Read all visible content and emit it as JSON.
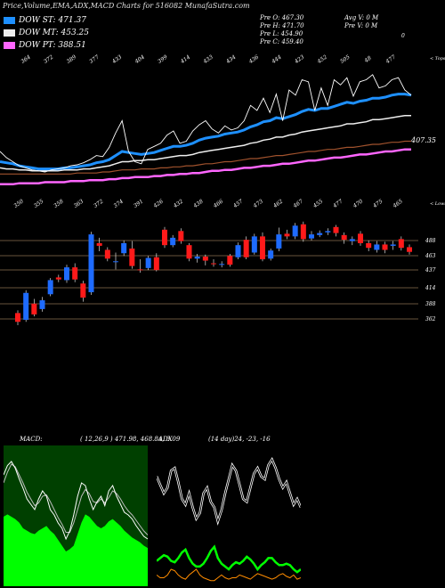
{
  "header": {
    "title": "Price,Volume,EMA,ADX,MACD Charts for 516082  MunafaSutra.com",
    "legend": [
      {
        "label": "DOW ST: 471.37",
        "color": "#1e90ff"
      },
      {
        "label": "DOW MT: 453.25",
        "color": "#eeeeee"
      },
      {
        "label": "DOW PT: 388.51",
        "color": "#ff66ff"
      }
    ],
    "prev": {
      "open": "Pre  O: 467.30",
      "high": "Pre  H: 471.70",
      "low": "Pre  L: 454.90",
      "close": "Pre  C: 459.40"
    },
    "avg_volume": "Avg V: 0  M",
    "prev_volume": "Pre  V: 0  M",
    "stray_mark": "0"
  },
  "chart_data": [
    {
      "type": "line",
      "name": "ema-panel",
      "top_tick_labels": [
        "364",
        "372",
        "389",
        "377",
        "433",
        "404",
        "399",
        "414",
        "433",
        "434",
        "436",
        "444",
        "423",
        "452",
        "505",
        "48",
        "477"
      ],
      "right_tag": "< Tops",
      "price_tag": "407.35",
      "colors": {
        "price": "#ffffff",
        "st": "#1e90ff",
        "mt": "#eeeeee",
        "lt_brown": "#a0522d",
        "pt": "#ff66ff"
      },
      "series": [
        {
          "values": [
            450,
            444,
            440,
            436,
            434,
            432,
            431,
            430,
            432,
            433,
            434,
            436,
            437,
            439,
            442,
            446,
            445,
            454,
            468,
            480,
            450,
            440,
            438,
            452,
            455,
            458,
            466,
            470,
            458,
            460,
            470,
            476,
            480,
            472,
            468,
            475,
            471,
            473,
            480,
            495,
            490,
            502,
            488,
            506,
            480,
            510,
            505,
            520,
            518,
            490,
            512,
            495,
            520,
            515,
            522,
            504,
            518,
            520,
            525,
            512,
            514,
            520,
            522,
            510,
            505
          ]
        },
        {
          "values": [
            440,
            439,
            438,
            436,
            435,
            434,
            433,
            433,
            433,
            433,
            434,
            434,
            435,
            436,
            437,
            439,
            440,
            442,
            446,
            450,
            449,
            448,
            447,
            448,
            449,
            451,
            453,
            455,
            455,
            456,
            458,
            461,
            463,
            464,
            465,
            467,
            468,
            469,
            471,
            474,
            476,
            479,
            480,
            483,
            482,
            484,
            486,
            489,
            491,
            490,
            492,
            492,
            494,
            496,
            498,
            497,
            499,
            500,
            502,
            502,
            503,
            505,
            506,
            506,
            505
          ]
        },
        {
          "values": [
            434,
            433,
            433,
            432,
            432,
            431,
            431,
            431,
            431,
            431,
            432,
            432,
            432,
            433,
            433,
            434,
            435,
            436,
            438,
            440,
            440,
            441,
            441,
            442,
            442,
            443,
            444,
            445,
            446,
            446,
            447,
            449,
            450,
            451,
            452,
            453,
            454,
            455,
            456,
            458,
            459,
            461,
            462,
            464,
            464,
            466,
            467,
            469,
            470,
            471,
            472,
            473,
            474,
            475,
            477,
            477,
            478,
            479,
            481,
            481,
            482,
            483,
            484,
            485,
            485
          ]
        },
        {
          "values": [
            428,
            428,
            428,
            428,
            428,
            428,
            428,
            428,
            428,
            428,
            428,
            428,
            429,
            429,
            429,
            429,
            430,
            430,
            431,
            432,
            432,
            432,
            433,
            433,
            433,
            434,
            434,
            435,
            435,
            436,
            436,
            437,
            438,
            438,
            439,
            440,
            440,
            441,
            442,
            443,
            443,
            444,
            445,
            446,
            446,
            447,
            448,
            449,
            450,
            450,
            451,
            452,
            452,
            453,
            454,
            454,
            455,
            456,
            457,
            457,
            458,
            459,
            459,
            460,
            460
          ]
        },
        {
          "values": [
            418,
            418,
            418,
            419,
            419,
            419,
            419,
            420,
            420,
            420,
            420,
            421,
            421,
            421,
            422,
            422,
            422,
            423,
            423,
            424,
            424,
            425,
            425,
            425,
            426,
            426,
            427,
            427,
            428,
            428,
            429,
            429,
            430,
            431,
            431,
            432,
            432,
            433,
            434,
            434,
            435,
            436,
            436,
            437,
            438,
            438,
            439,
            440,
            441,
            441,
            442,
            443,
            444,
            444,
            445,
            446,
            447,
            447,
            448,
            449,
            450,
            450,
            451,
            452,
            452
          ]
        }
      ]
    },
    {
      "type": "candlestick",
      "name": "price-panel",
      "bottom_tick_labels": [
        "350",
        "355",
        "358",
        "363",
        "372",
        "374",
        "391",
        "426",
        "432",
        "438",
        "466",
        "457",
        "473",
        "462",
        "467",
        "455",
        "477",
        "470",
        "475",
        "465"
      ],
      "right_tag": "< Lows",
      "y_axis_labels": [
        "488",
        "463",
        "437",
        "414",
        "388",
        "362"
      ],
      "ylim": [
        350,
        505
      ],
      "candles": [
        {
          "o": 368,
          "c": 355,
          "h": 372,
          "l": 350
        },
        {
          "o": 358,
          "c": 398,
          "h": 402,
          "l": 355
        },
        {
          "o": 382,
          "c": 366,
          "h": 389,
          "l": 363
        },
        {
          "o": 374,
          "c": 387,
          "h": 392,
          "l": 370
        },
        {
          "o": 396,
          "c": 417,
          "h": 420,
          "l": 393
        },
        {
          "o": 421,
          "c": 418,
          "h": 425,
          "l": 414
        },
        {
          "o": 417,
          "c": 436,
          "h": 440,
          "l": 413
        },
        {
          "o": 436,
          "c": 418,
          "h": 442,
          "l": 414
        },
        {
          "o": 412,
          "c": 391,
          "h": 416,
          "l": 385
        },
        {
          "o": 399,
          "c": 485,
          "h": 489,
          "l": 395
        },
        {
          "o": 472,
          "c": 468,
          "h": 480,
          "l": 460
        },
        {
          "o": 462,
          "c": 449,
          "h": 466,
          "l": 445
        },
        {
          "o": 445,
          "c": 445,
          "h": 458,
          "l": 433
        },
        {
          "o": 457,
          "c": 472,
          "h": 476,
          "l": 453
        },
        {
          "o": 464,
          "c": 438,
          "h": 475,
          "l": 434
        },
        {
          "o": 433,
          "c": 432,
          "h": 448,
          "l": 428
        },
        {
          "o": 435,
          "c": 450,
          "h": 453,
          "l": 432
        },
        {
          "o": 451,
          "c": 432,
          "h": 457,
          "l": 430
        },
        {
          "o": 492,
          "c": 469,
          "h": 496,
          "l": 465
        },
        {
          "o": 469,
          "c": 480,
          "h": 484,
          "l": 466
        },
        {
          "o": 490,
          "c": 475,
          "h": 494,
          "l": 471
        },
        {
          "o": 469,
          "c": 449,
          "h": 472,
          "l": 445
        },
        {
          "o": 449,
          "c": 452,
          "h": 456,
          "l": 443
        },
        {
          "o": 452,
          "c": 446,
          "h": 455,
          "l": 439
        },
        {
          "o": 442,
          "c": 441,
          "h": 448,
          "l": 437
        },
        {
          "o": 440,
          "c": 441,
          "h": 445,
          "l": 436
        },
        {
          "o": 453,
          "c": 440,
          "h": 456,
          "l": 437
        },
        {
          "o": 451,
          "c": 469,
          "h": 473,
          "l": 448
        },
        {
          "o": 477,
          "c": 451,
          "h": 482,
          "l": 448
        },
        {
          "o": 458,
          "c": 482,
          "h": 486,
          "l": 455
        },
        {
          "o": 482,
          "c": 448,
          "h": 488,
          "l": 445
        },
        {
          "o": 449,
          "c": 461,
          "h": 464,
          "l": 446
        },
        {
          "o": 464,
          "c": 485,
          "h": 495,
          "l": 460
        },
        {
          "o": 486,
          "c": 482,
          "h": 492,
          "l": 478
        },
        {
          "o": 482,
          "c": 498,
          "h": 502,
          "l": 478
        },
        {
          "o": 500,
          "c": 478,
          "h": 504,
          "l": 474
        },
        {
          "o": 479,
          "c": 485,
          "h": 490,
          "l": 476
        },
        {
          "o": 484,
          "c": 487,
          "h": 491,
          "l": 481
        },
        {
          "o": 488,
          "c": 490,
          "h": 494,
          "l": 484
        },
        {
          "o": 496,
          "c": 487,
          "h": 499,
          "l": 482
        },
        {
          "o": 484,
          "c": 477,
          "h": 488,
          "l": 471
        },
        {
          "o": 475,
          "c": 478,
          "h": 482,
          "l": 469
        },
        {
          "o": 486,
          "c": 472,
          "h": 490,
          "l": 468
        },
        {
          "o": 472,
          "c": 465,
          "h": 476,
          "l": 460
        },
        {
          "o": 462,
          "c": 470,
          "h": 475,
          "l": 458
        },
        {
          "o": 470,
          "c": 462,
          "h": 474,
          "l": 457
        },
        {
          "o": 468,
          "c": 470,
          "h": 475,
          "l": 462
        },
        {
          "o": 478,
          "c": 465,
          "h": 482,
          "l": 461
        },
        {
          "o": 466,
          "c": 459,
          "h": 470,
          "l": 455
        }
      ]
    },
    {
      "type": "area",
      "name": "macd-panel",
      "label": "MACD:",
      "params": "( 12,26,9 ) 471.98,  468.84,  3.09",
      "colors": {
        "hist": "#00ff00",
        "macd": "#ffffff",
        "signal": "#bbbbbb",
        "bg": "#004000"
      },
      "series": [
        {
          "values": [
            0.6,
            0.62,
            0.6,
            0.58,
            0.55,
            0.5,
            0.48,
            0.46,
            0.45,
            0.48,
            0.5,
            0.52,
            0.48,
            0.45,
            0.4,
            0.35,
            0.3,
            0.32,
            0.35,
            0.45,
            0.55,
            0.62,
            0.6,
            0.56,
            0.52,
            0.5,
            0.52,
            0.56,
            0.58,
            0.55,
            0.52,
            0.48,
            0.45,
            0.42,
            0.4,
            0.38,
            0.35,
            0.33
          ]
        },
        {
          "values": [
            0.78,
            0.85,
            0.88,
            0.83,
            0.75,
            0.68,
            0.6,
            0.56,
            0.52,
            0.6,
            0.66,
            0.62,
            0.52,
            0.48,
            0.42,
            0.38,
            0.3,
            0.36,
            0.48,
            0.62,
            0.72,
            0.7,
            0.6,
            0.52,
            0.58,
            0.62,
            0.55,
            0.66,
            0.7,
            0.62,
            0.56,
            0.5,
            0.48,
            0.45,
            0.4,
            0.36,
            0.32,
            0.3
          ]
        },
        {
          "values": [
            0.72,
            0.8,
            0.86,
            0.84,
            0.78,
            0.72,
            0.65,
            0.6,
            0.55,
            0.57,
            0.62,
            0.63,
            0.58,
            0.52,
            0.46,
            0.41,
            0.35,
            0.35,
            0.42,
            0.52,
            0.62,
            0.67,
            0.64,
            0.58,
            0.57,
            0.6,
            0.57,
            0.61,
            0.66,
            0.64,
            0.6,
            0.55,
            0.51,
            0.48,
            0.44,
            0.4,
            0.36,
            0.33
          ]
        }
      ]
    },
    {
      "type": "line",
      "name": "adx-panel",
      "label": "ADX",
      "params": "(14 day)24,  -23,  -16",
      "colors": {
        "adx": "#ffffff",
        "plus": "#00ff00",
        "minus": "#ff8c00"
      },
      "series": [
        {
          "values": [
            0.78,
            0.72,
            0.66,
            0.7,
            0.82,
            0.84,
            0.74,
            0.62,
            0.58,
            0.66,
            0.56,
            0.48,
            0.52,
            0.66,
            0.7,
            0.6,
            0.56,
            0.46,
            0.54,
            0.66,
            0.76,
            0.86,
            0.82,
            0.72,
            0.62,
            0.6,
            0.7,
            0.8,
            0.84,
            0.78,
            0.76,
            0.86,
            0.9,
            0.84,
            0.76,
            0.7,
            0.74,
            0.66,
            0.58,
            0.62,
            0.56
          ]
        },
        {
          "values": [
            0.18,
            0.2,
            0.22,
            0.21,
            0.18,
            0.17,
            0.2,
            0.24,
            0.26,
            0.2,
            0.16,
            0.14,
            0.14,
            0.16,
            0.2,
            0.25,
            0.28,
            0.2,
            0.16,
            0.14,
            0.12,
            0.15,
            0.17,
            0.16,
            0.18,
            0.21,
            0.19,
            0.16,
            0.12,
            0.15,
            0.17,
            0.2,
            0.2,
            0.17,
            0.15,
            0.15,
            0.16,
            0.15,
            0.12,
            0.1,
            0.12
          ]
        },
        {
          "values": [
            0.08,
            0.06,
            0.06,
            0.08,
            0.12,
            0.11,
            0.08,
            0.06,
            0.05,
            0.08,
            0.1,
            0.12,
            0.08,
            0.06,
            0.05,
            0.04,
            0.04,
            0.06,
            0.08,
            0.06,
            0.05,
            0.06,
            0.06,
            0.08,
            0.07,
            0.06,
            0.05,
            0.07,
            0.09,
            0.08,
            0.07,
            0.06,
            0.05,
            0.06,
            0.08,
            0.09,
            0.07,
            0.06,
            0.08,
            0.05,
            0.06
          ]
        }
      ]
    }
  ]
}
